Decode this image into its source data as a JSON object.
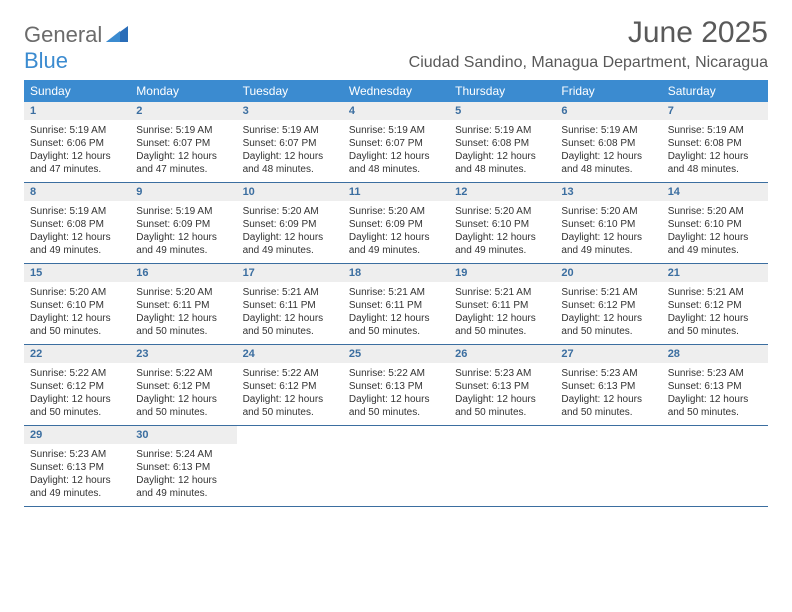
{
  "logo": {
    "general": "General",
    "blue": "Blue"
  },
  "title": {
    "month": "June 2025",
    "location": "Ciudad Sandino, Managua Department, Nicaragua"
  },
  "colors": {
    "header_bg": "#3b8bd0",
    "header_fg": "#ffffff",
    "daynum_bg": "#eeeeee",
    "daynum_fg": "#3b6ea0",
    "row_border": "#3b6ea0"
  },
  "weekdays": [
    "Sunday",
    "Monday",
    "Tuesday",
    "Wednesday",
    "Thursday",
    "Friday",
    "Saturday"
  ],
  "days": [
    {
      "n": 1,
      "sunrise": "5:19 AM",
      "sunset": "6:06 PM",
      "daylight": "12 hours and 47 minutes."
    },
    {
      "n": 2,
      "sunrise": "5:19 AM",
      "sunset": "6:07 PM",
      "daylight": "12 hours and 47 minutes."
    },
    {
      "n": 3,
      "sunrise": "5:19 AM",
      "sunset": "6:07 PM",
      "daylight": "12 hours and 48 minutes."
    },
    {
      "n": 4,
      "sunrise": "5:19 AM",
      "sunset": "6:07 PM",
      "daylight": "12 hours and 48 minutes."
    },
    {
      "n": 5,
      "sunrise": "5:19 AM",
      "sunset": "6:08 PM",
      "daylight": "12 hours and 48 minutes."
    },
    {
      "n": 6,
      "sunrise": "5:19 AM",
      "sunset": "6:08 PM",
      "daylight": "12 hours and 48 minutes."
    },
    {
      "n": 7,
      "sunrise": "5:19 AM",
      "sunset": "6:08 PM",
      "daylight": "12 hours and 48 minutes."
    },
    {
      "n": 8,
      "sunrise": "5:19 AM",
      "sunset": "6:08 PM",
      "daylight": "12 hours and 49 minutes."
    },
    {
      "n": 9,
      "sunrise": "5:19 AM",
      "sunset": "6:09 PM",
      "daylight": "12 hours and 49 minutes."
    },
    {
      "n": 10,
      "sunrise": "5:20 AM",
      "sunset": "6:09 PM",
      "daylight": "12 hours and 49 minutes."
    },
    {
      "n": 11,
      "sunrise": "5:20 AM",
      "sunset": "6:09 PM",
      "daylight": "12 hours and 49 minutes."
    },
    {
      "n": 12,
      "sunrise": "5:20 AM",
      "sunset": "6:10 PM",
      "daylight": "12 hours and 49 minutes."
    },
    {
      "n": 13,
      "sunrise": "5:20 AM",
      "sunset": "6:10 PM",
      "daylight": "12 hours and 49 minutes."
    },
    {
      "n": 14,
      "sunrise": "5:20 AM",
      "sunset": "6:10 PM",
      "daylight": "12 hours and 49 minutes."
    },
    {
      "n": 15,
      "sunrise": "5:20 AM",
      "sunset": "6:10 PM",
      "daylight": "12 hours and 50 minutes."
    },
    {
      "n": 16,
      "sunrise": "5:20 AM",
      "sunset": "6:11 PM",
      "daylight": "12 hours and 50 minutes."
    },
    {
      "n": 17,
      "sunrise": "5:21 AM",
      "sunset": "6:11 PM",
      "daylight": "12 hours and 50 minutes."
    },
    {
      "n": 18,
      "sunrise": "5:21 AM",
      "sunset": "6:11 PM",
      "daylight": "12 hours and 50 minutes."
    },
    {
      "n": 19,
      "sunrise": "5:21 AM",
      "sunset": "6:11 PM",
      "daylight": "12 hours and 50 minutes."
    },
    {
      "n": 20,
      "sunrise": "5:21 AM",
      "sunset": "6:12 PM",
      "daylight": "12 hours and 50 minutes."
    },
    {
      "n": 21,
      "sunrise": "5:21 AM",
      "sunset": "6:12 PM",
      "daylight": "12 hours and 50 minutes."
    },
    {
      "n": 22,
      "sunrise": "5:22 AM",
      "sunset": "6:12 PM",
      "daylight": "12 hours and 50 minutes."
    },
    {
      "n": 23,
      "sunrise": "5:22 AM",
      "sunset": "6:12 PM",
      "daylight": "12 hours and 50 minutes."
    },
    {
      "n": 24,
      "sunrise": "5:22 AM",
      "sunset": "6:12 PM",
      "daylight": "12 hours and 50 minutes."
    },
    {
      "n": 25,
      "sunrise": "5:22 AM",
      "sunset": "6:13 PM",
      "daylight": "12 hours and 50 minutes."
    },
    {
      "n": 26,
      "sunrise": "5:23 AM",
      "sunset": "6:13 PM",
      "daylight": "12 hours and 50 minutes."
    },
    {
      "n": 27,
      "sunrise": "5:23 AM",
      "sunset": "6:13 PM",
      "daylight": "12 hours and 50 minutes."
    },
    {
      "n": 28,
      "sunrise": "5:23 AM",
      "sunset": "6:13 PM",
      "daylight": "12 hours and 50 minutes."
    },
    {
      "n": 29,
      "sunrise": "5:23 AM",
      "sunset": "6:13 PM",
      "daylight": "12 hours and 49 minutes."
    },
    {
      "n": 30,
      "sunrise": "5:24 AM",
      "sunset": "6:13 PM",
      "daylight": "12 hours and 49 minutes."
    }
  ],
  "labels": {
    "sunrise": "Sunrise:",
    "sunset": "Sunset:",
    "daylight": "Daylight:"
  }
}
